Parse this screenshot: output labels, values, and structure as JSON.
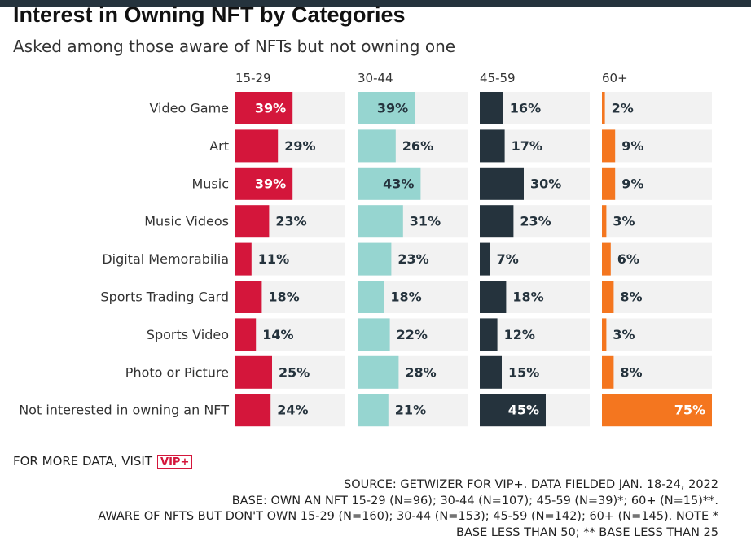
{
  "title": "Interest in Owning NFT by Categories",
  "subtitle": "Asked among those aware of NFTs but not owning one",
  "footer": {
    "more_data": "FOR MORE DATA, VISIT",
    "vip_logo": "VIP+",
    "source_lines": [
      "SOURCE: GETWIZER FOR VIP+. DATA FIELDED JAN. 18-24, 2022",
      "BASE: OWN AN NFT 15-29 (N=96); 30-44 (N=107); 45-59 (N=39)*; 60+ (N=15)**.",
      "AWARE OF NFTS BUT DON'T OWN 15-29 (N=160); 30-44 (N=153); 45-59 (N=142); 60+ (N=145). NOTE *",
      "BASE LESS THAN 50; ** BASE LESS THAN 25"
    ]
  },
  "colors": {
    "track": "#f2f2f2",
    "topbar": "#25333d"
  },
  "chart_data": {
    "type": "bar",
    "orientation": "horizontal",
    "categories": [
      "Video Game",
      "Art",
      "Music",
      "Music Videos",
      "Digital Memorabilia",
      "Sports Trading Card",
      "Sports Video",
      "Photo or Picture",
      "Not interested in owning an NFT"
    ],
    "series": [
      {
        "name": "15-29",
        "color": "#d4163b",
        "values": [
          39,
          29,
          39,
          23,
          11,
          18,
          14,
          25,
          24
        ],
        "labels": [
          "39%",
          "29%",
          "39%",
          "23%",
          "11%",
          "18%",
          "14%",
          "25%",
          "24%"
        ]
      },
      {
        "name": "30-44",
        "color": "#96d5d0",
        "values": [
          39,
          26,
          43,
          31,
          23,
          18,
          22,
          28,
          21
        ],
        "labels": [
          "39%",
          "26%",
          "43%",
          "31%",
          "23%",
          "18%",
          "22%",
          "28%",
          "21%"
        ]
      },
      {
        "name": "45-59",
        "color": "#25333d",
        "values": [
          16,
          17,
          30,
          23,
          7,
          18,
          12,
          15,
          45
        ],
        "labels": [
          "16%",
          "17%",
          "30%",
          "23%",
          "7%",
          "18%",
          "12%",
          "15%",
          "45%"
        ]
      },
      {
        "name": "60+",
        "color": "#f4761f",
        "values": [
          2,
          9,
          9,
          3,
          6,
          8,
          3,
          8,
          75
        ],
        "labels": [
          "2%",
          "9%",
          "9%",
          "3%",
          "6%",
          "8%",
          "3%",
          "8%",
          "75%"
        ]
      }
    ],
    "xlim": [
      0,
      75
    ],
    "grid": false,
    "legend": "column headers"
  }
}
